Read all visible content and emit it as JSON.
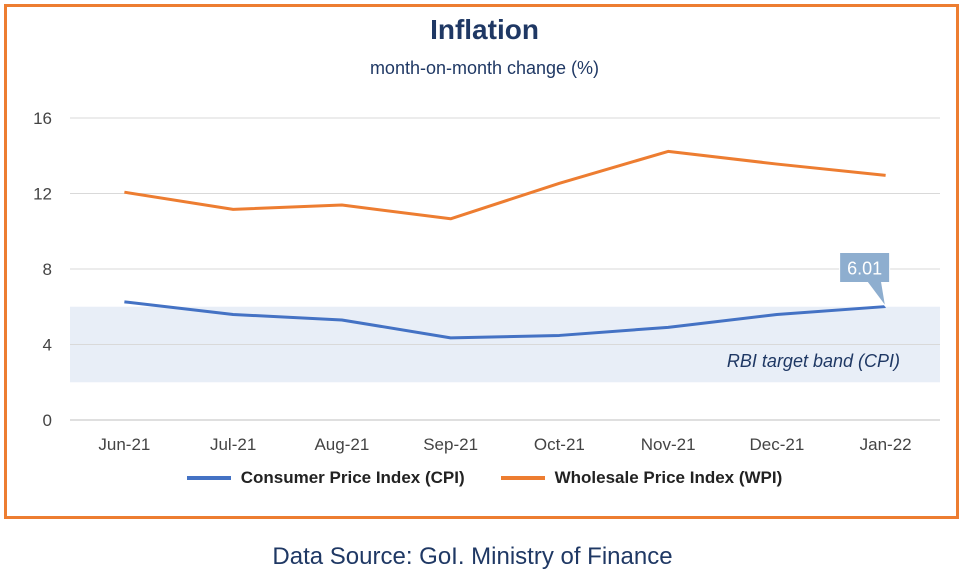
{
  "chart_data": {
    "type": "line",
    "title": "Inflation",
    "subtitle": "month-on-month change (%)",
    "categories": [
      "Jun-21",
      "Jul-21",
      "Aug-21",
      "Sep-21",
      "Oct-21",
      "Nov-21",
      "Dec-21",
      "Jan-22"
    ],
    "ylim": [
      0,
      16
    ],
    "yticks": [
      "0",
      "4",
      "8",
      "12",
      "16"
    ],
    "grid": true,
    "legend_position": "bottom",
    "series": [
      {
        "name": "Consumer Price Index (CPI)",
        "color": "#4472c4",
        "values": [
          6.26,
          5.59,
          5.3,
          4.35,
          4.48,
          4.91,
          5.59,
          6.01
        ]
      },
      {
        "name": "Wholesale Price Index (WPI)",
        "color": "#ed7d31",
        "values": [
          12.07,
          11.16,
          11.39,
          10.66,
          12.54,
          14.23,
          13.56,
          12.96
        ]
      }
    ],
    "band": {
      "label": "RBI target band (CPI)",
      "range": [
        2,
        6
      ],
      "color": "#e8eef7"
    },
    "callout": {
      "text": "6.01",
      "series": 0,
      "index": 7
    }
  },
  "source": "Data Source: GoI. Ministry of Finance"
}
